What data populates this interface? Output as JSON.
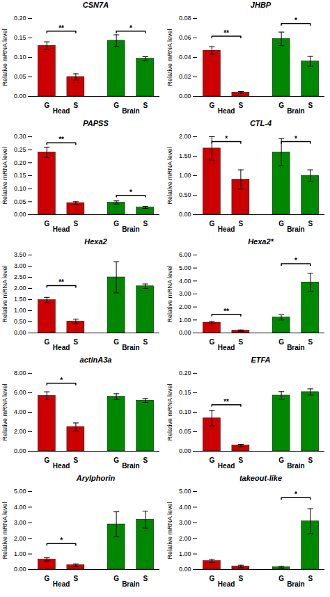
{
  "chart_data": [
    {
      "type": "bar",
      "title": "CSN7A",
      "ylabel": "Relative mRNA level",
      "categories": [
        "G",
        "S",
        "G",
        "S"
      ],
      "groups": [
        "Head",
        "Head",
        "Brain",
        "Brain"
      ],
      "values": [
        0.13,
        0.05,
        0.143,
        0.097
      ],
      "errors": [
        0.01,
        0.008,
        0.015,
        0.005
      ],
      "colors": [
        "#cc0000",
        "#cc0000",
        "#008800",
        "#008800"
      ],
      "ylim": [
        0,
        0.2
      ],
      "yticks": [
        {
          "value": 0,
          "label": "0.00"
        },
        0.05,
        {
          "value": 0.1,
          "label": "0.10"
        },
        0.15,
        {
          "value": 0.2,
          "label": "0.20"
        }
      ],
      "annotations": [
        {
          "text": "**",
          "x1": 0,
          "x2": 1,
          "y": 0.163
        },
        {
          "text": "*",
          "x1": 2,
          "x2": 3,
          "y": 0.163
        }
      ]
    },
    {
      "type": "bar",
      "title": "JHBP",
      "ylabel": "Relative mRNA level",
      "categories": [
        "G",
        "S",
        "G",
        "S"
      ],
      "groups": [
        "Head",
        "Head",
        "Brain",
        "Brain"
      ],
      "values": [
        0.047,
        0.004,
        0.059,
        0.036
      ],
      "errors": [
        0.004,
        0.001,
        0.007,
        0.005
      ],
      "colors": [
        "#cc0000",
        "#cc0000",
        "#008800",
        "#008800"
      ],
      "ylim": [
        0,
        0.08
      ],
      "yticks": [
        {
          "value": 0,
          "label": "0.00"
        },
        0.02,
        0.04,
        0.06,
        0.08
      ],
      "annotations": [
        {
          "text": "**",
          "x1": 0,
          "x2": 1,
          "y": 0.06
        },
        {
          "text": "*",
          "x1": 2,
          "x2": 3,
          "y": 0.073
        }
      ]
    },
    {
      "type": "bar",
      "title": "PAPSS",
      "ylabel": "Relative mRNA level",
      "categories": [
        "G",
        "S",
        "G",
        "S"
      ],
      "groups": [
        "Head",
        "Head",
        "Brain",
        "Brain"
      ],
      "values": [
        0.24,
        0.045,
        0.047,
        0.028
      ],
      "errors": [
        0.02,
        0.005,
        0.006,
        0.004
      ],
      "colors": [
        "#cc0000",
        "#cc0000",
        "#008800",
        "#008800"
      ],
      "ylim": [
        0,
        0.3
      ],
      "yticks": [
        {
          "value": 0,
          "label": "0.00"
        },
        0.05,
        {
          "value": 0.1,
          "label": "0.10"
        },
        0.15,
        {
          "value": 0.2,
          "label": "0.20"
        },
        0.25,
        {
          "value": 0.3,
          "label": "0.30"
        }
      ],
      "annotations": [
        {
          "text": "**",
          "x1": 0,
          "x2": 1,
          "y": 0.27
        },
        {
          "text": "*",
          "x1": 2,
          "x2": 3,
          "y": 0.068
        }
      ]
    },
    {
      "type": "bar",
      "title": "CTL-4",
      "ylabel": "Relative mRNA level",
      "categories": [
        "G",
        "S",
        "G",
        "S"
      ],
      "groups": [
        "Head",
        "Head",
        "Brain",
        "Brain"
      ],
      "values": [
        1.7,
        0.9,
        1.6,
        1.0
      ],
      "errors": [
        0.3,
        0.25,
        0.35,
        0.15
      ],
      "colors": [
        "#cc0000",
        "#cc0000",
        "#008800",
        "#008800"
      ],
      "ylim": [
        0,
        2.0
      ],
      "yticks": [
        {
          "value": 0,
          "label": "0.00"
        },
        {
          "value": 0.5,
          "label": "0.50"
        },
        {
          "value": 1,
          "label": "1.00"
        },
        {
          "value": 1.5,
          "label": "1.50"
        },
        {
          "value": 2,
          "label": "2.00"
        }
      ],
      "annotations": [
        {
          "text": "*",
          "x1": 0,
          "x2": 1,
          "y": 1.83
        },
        {
          "text": "*",
          "x1": 2,
          "x2": 3,
          "y": 1.83
        }
      ]
    },
    {
      "type": "bar",
      "title": "Hexa2",
      "ylabel": "Relative mRNA level",
      "categories": [
        "G",
        "S",
        "G",
        "S"
      ],
      "groups": [
        "Head",
        "Head",
        "Brain",
        "Brain"
      ],
      "values": [
        1.48,
        0.52,
        2.5,
        2.1
      ],
      "errors": [
        0.12,
        0.1,
        0.7,
        0.1
      ],
      "colors": [
        "#cc0000",
        "#cc0000",
        "#008800",
        "#008800"
      ],
      "ylim": [
        0,
        3.5
      ],
      "yticks": [
        {
          "value": 0,
          "label": "0.00"
        },
        {
          "value": 0.5,
          "label": "0.50"
        },
        {
          "value": 1,
          "label": "1.00"
        },
        {
          "value": 1.5,
          "label": "1.50"
        },
        {
          "value": 2,
          "label": "2.00"
        },
        {
          "value": 2.5,
          "label": "2.50"
        },
        {
          "value": 3,
          "label": "3.00"
        },
        {
          "value": 3.5,
          "label": "3.50"
        }
      ],
      "annotations": [
        {
          "text": "**",
          "x1": 0,
          "x2": 1,
          "y": 2.05
        }
      ]
    },
    {
      "type": "bar",
      "title": "Hexa2*",
      "ylabel": "Relative mRNA level",
      "categories": [
        "G",
        "S",
        "G",
        "S"
      ],
      "groups": [
        "Head",
        "Head",
        "Brain",
        "Brain"
      ],
      "values": [
        0.8,
        0.18,
        1.2,
        3.9
      ],
      "errors": [
        0.1,
        0.05,
        0.2,
        0.7
      ],
      "colors": [
        "#cc0000",
        "#cc0000",
        "#008800",
        "#008800"
      ],
      "ylim": [
        0,
        6.0
      ],
      "yticks": [
        {
          "value": 0,
          "label": "0.00"
        },
        {
          "value": 1,
          "label": "1.00"
        },
        {
          "value": 2,
          "label": "2.00"
        },
        {
          "value": 3,
          "label": "3.00"
        },
        {
          "value": 4,
          "label": "4.00"
        },
        {
          "value": 5,
          "label": "5.00"
        },
        {
          "value": 6,
          "label": "6.00"
        }
      ],
      "annotations": [
        {
          "text": "**",
          "x1": 0,
          "x2": 1,
          "y": 1.3
        },
        {
          "text": "*",
          "x1": 2,
          "x2": 3,
          "y": 5.2
        }
      ]
    },
    {
      "type": "bar",
      "title": "actinA3a",
      "ylabel": "Relative mRNA level",
      "categories": [
        "G",
        "S",
        "G",
        "S"
      ],
      "groups": [
        "Head",
        "Head",
        "Brain",
        "Brain"
      ],
      "values": [
        5.7,
        2.5,
        5.6,
        5.2
      ],
      "errors": [
        0.4,
        0.4,
        0.3,
        0.2
      ],
      "colors": [
        "#cc0000",
        "#cc0000",
        "#008800",
        "#008800"
      ],
      "ylim": [
        0,
        8.0
      ],
      "yticks": [
        {
          "value": 0,
          "label": "0.00"
        },
        {
          "value": 2,
          "label": "2.00"
        },
        {
          "value": 4,
          "label": "4.00"
        },
        {
          "value": 6,
          "label": "6.00"
        },
        {
          "value": 8,
          "label": "8.00"
        }
      ],
      "annotations": [
        {
          "text": "*",
          "x1": 0,
          "x2": 1,
          "y": 6.8
        }
      ]
    },
    {
      "type": "bar",
      "title": "ETFA",
      "ylabel": "Relative mRNA level",
      "categories": [
        "G",
        "S",
        "G",
        "S"
      ],
      "groups": [
        "Head",
        "Head",
        "Brain",
        "Brain"
      ],
      "values": [
        0.085,
        0.015,
        0.143,
        0.152
      ],
      "errors": [
        0.02,
        0.003,
        0.01,
        0.008
      ],
      "colors": [
        "#cc0000",
        "#cc0000",
        "#008800",
        "#008800"
      ],
      "ylim": [
        0,
        0.2
      ],
      "yticks": [
        {
          "value": 0,
          "label": "0.00"
        },
        0.05,
        {
          "value": 0.1,
          "label": "0.10"
        },
        0.15,
        {
          "value": 0.2,
          "label": "0.20"
        }
      ],
      "annotations": [
        {
          "text": "**",
          "x1": 0,
          "x2": 1,
          "y": 0.115
        }
      ]
    },
    {
      "type": "bar",
      "title": "Arylphorin",
      "ylabel": "Relative mRNA level",
      "categories": [
        "G",
        "S",
        "G",
        "S"
      ],
      "groups": [
        "Head",
        "Head",
        "Brain",
        "Brain"
      ],
      "values": [
        0.65,
        0.28,
        2.9,
        3.2
      ],
      "errors": [
        0.1,
        0.08,
        0.8,
        0.55
      ],
      "colors": [
        "#cc0000",
        "#cc0000",
        "#008800",
        "#008800"
      ],
      "ylim": [
        0,
        5.0
      ],
      "yticks": [
        {
          "value": 0,
          "label": "0.00"
        },
        {
          "value": 1,
          "label": "1.00"
        },
        {
          "value": 2,
          "label": "2.00"
        },
        {
          "value": 3,
          "label": "3.00"
        },
        {
          "value": 4,
          "label": "4.00"
        },
        {
          "value": 5,
          "label": "5.00"
        }
      ],
      "annotations": [
        {
          "text": "*",
          "x1": 0,
          "x2": 1,
          "y": 1.55
        }
      ]
    },
    {
      "type": "bar",
      "title": "takeout-like",
      "ylabel": "Relative mRNA level",
      "categories": [
        "G",
        "S",
        "G",
        "S"
      ],
      "groups": [
        "Head",
        "Head",
        "Brain",
        "Brain"
      ],
      "values": [
        0.55,
        0.2,
        0.15,
        3.1
      ],
      "errors": [
        0.1,
        0.08,
        0.05,
        0.8
      ],
      "colors": [
        "#cc0000",
        "#cc0000",
        "#008800",
        "#008800"
      ],
      "ylim": [
        0,
        5.0
      ],
      "yticks": [
        {
          "value": 0,
          "label": "0.00"
        },
        {
          "value": 1,
          "label": "1.00"
        },
        {
          "value": 2,
          "label": "2.00"
        },
        {
          "value": 3,
          "label": "3.00"
        },
        {
          "value": 4,
          "label": "4.00"
        },
        {
          "value": 5,
          "label": "5.00"
        }
      ],
      "annotations": [
        {
          "text": "*",
          "x1": 2,
          "x2": 3,
          "y": 4.5
        }
      ]
    }
  ]
}
